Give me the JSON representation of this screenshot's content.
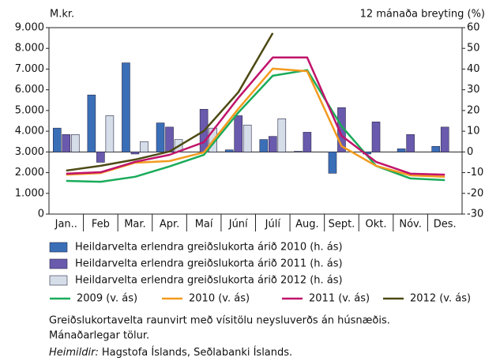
{
  "chart_data": {
    "type": "bar_line",
    "ylabel": "M.kr.",
    "y2label": "12 mánaða breyting (%)",
    "categories": [
      "Jan..",
      "Feb",
      "Mar.",
      "Apr.",
      "Maí",
      "Júní",
      "Júlí",
      "Aug.",
      "Sept.",
      "Okt.",
      "Nóv.",
      "Des."
    ],
    "ylim": [
      0,
      9000
    ],
    "yticks": [
      0,
      {
        "value": 1000,
        "label": "1.000"
      },
      {
        "value": 2000,
        "label": "2.000"
      },
      {
        "value": 3000,
        "label": "3.000"
      },
      {
        "value": 4000,
        "label": "4.000"
      },
      {
        "value": 5000,
        "label": "5.000"
      },
      {
        "value": 6000,
        "label": "6.000"
      },
      {
        "value": 7000,
        "label": "7.000"
      },
      {
        "value": 8000,
        "label": "8.000"
      },
      {
        "value": 9000,
        "label": "9.000"
      }
    ],
    "y2lim": [
      -30,
      60
    ],
    "y2ticks": [
      -30,
      -20,
      -10,
      0,
      10,
      20,
      30,
      40,
      50,
      60
    ],
    "series": [
      {
        "name": "Heildarvelta erlendra greiðslukorta árið 2010 (h. ás)",
        "type": "bar",
        "axis": "y2",
        "color": "#3a6fb8",
        "values": [
          11.5,
          27.5,
          43,
          14,
          null,
          1,
          6,
          0.3,
          -10.3,
          -1,
          1.5,
          2.7
        ]
      },
      {
        "name": "Heildarvelta erlendra greiðslukorta árið 2011 (h. ás)",
        "type": "bar",
        "axis": "y2",
        "color": "#6a5aad",
        "values": [
          8.4,
          -5,
          -1,
          12,
          20.6,
          17.5,
          7.5,
          9.5,
          21.4,
          14.5,
          8.4,
          12
        ]
      },
      {
        "name": "Heildarvelta erlendra greiðslukorta árið 2012 (h. ás)",
        "type": "bar",
        "axis": "y2",
        "color": "#d5dde8",
        "values": [
          8.4,
          17.5,
          5,
          6,
          11.5,
          13,
          16,
          null,
          null,
          null,
          null,
          null
        ]
      },
      {
        "name": "2009 (v. ás)",
        "type": "line",
        "color": "#1aab5a",
        "values": [
          1600,
          1560,
          1800,
          2300,
          2860,
          4900,
          6680,
          6950,
          4240,
          2330,
          1720,
          1640
        ]
      },
      {
        "name": "2010 (v. ás)",
        "type": "line",
        "color": "#f39a1e",
        "values": [
          1900,
          1980,
          2480,
          2560,
          2980,
          5080,
          7020,
          6900,
          3280,
          2330,
          1870,
          1800
        ]
      },
      {
        "name": "2011 (v. ás)",
        "type": "line",
        "color": "#c0136b",
        "values": [
          1950,
          2020,
          2520,
          2860,
          3470,
          5610,
          7560,
          7560,
          3780,
          2520,
          1950,
          1900
        ]
      },
      {
        "name": "2012 (v. ás)",
        "type": "line",
        "color": "#4d4a14",
        "values": [
          2100,
          2330,
          2630,
          3020,
          4010,
          5880,
          8740,
          null,
          null,
          null,
          null,
          null
        ]
      }
    ],
    "notes": [
      "Greiðslukortavelta raunvirt með vísitölu neysluverðs án húsnæðis.",
      "Mánaðarlegar tölur."
    ],
    "source_label": "Heimildir:",
    "source": "Hagstofa Íslands, Seðlabanki Íslands."
  }
}
